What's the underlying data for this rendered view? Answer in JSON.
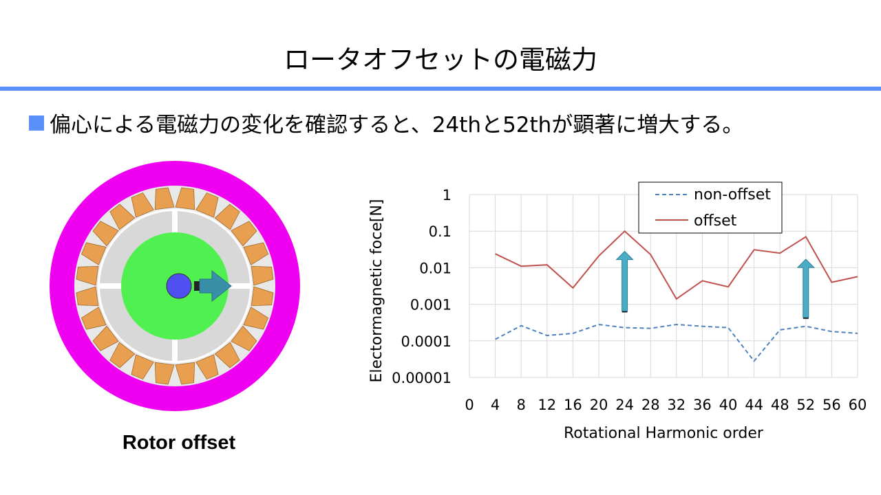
{
  "slide": {
    "title": "ロータオフセットの電磁力",
    "bullet": "偏心による電磁力の変化を確認すると、24thと52thが顕著に増大する。",
    "accent_color": "#5B8FF9"
  },
  "figure": {
    "caption": "Rotor offset",
    "colors": {
      "stator_outer": "#F000F0",
      "slot_gap": "#E8E8E8",
      "coil": "#E8A050",
      "rotor_core": "#D8D8D8",
      "magnet_region": "#50F050",
      "shaft": "#5050F0",
      "offset_arrow": "#3A8FA8"
    },
    "coil_count": 24,
    "offset_arrow_icon": "arrow-right-icon"
  },
  "chart_data": {
    "type": "line",
    "xlabel": "Rotational Harmonic order",
    "ylabel": "Electormagnetic foce[N]",
    "yscale": "log",
    "ylim": [
      1e-05,
      1
    ],
    "xlim": [
      0,
      60
    ],
    "x_ticks": [
      "0",
      "4",
      "8",
      "12",
      "16",
      "20",
      "24",
      "28",
      "32",
      "36",
      "40",
      "44",
      "48",
      "52",
      "56",
      "60"
    ],
    "y_ticks": [
      "0.00001",
      "0.0001",
      "0.001",
      "0.01",
      "0.1",
      "1"
    ],
    "grid": true,
    "legend_position": "top-center",
    "series": [
      {
        "name": "non-offset",
        "style": "dashed",
        "color": "#4F81BD",
        "x": [
          4,
          8,
          12,
          16,
          20,
          24,
          28,
          32,
          36,
          40,
          44,
          48,
          52,
          56,
          60
        ],
        "values": [
          0.00011,
          0.00026,
          0.00014,
          0.00016,
          0.00028,
          0.00023,
          0.00022,
          0.00028,
          0.00025,
          0.00023,
          2.8e-05,
          0.0002,
          0.00025,
          0.00018,
          0.00016
        ]
      },
      {
        "name": "offset",
        "style": "solid",
        "color": "#C0504D",
        "x": [
          4,
          8,
          12,
          16,
          20,
          24,
          28,
          32,
          36,
          40,
          44,
          48,
          52,
          56,
          60
        ],
        "values": [
          0.024,
          0.011,
          0.012,
          0.0028,
          0.021,
          0.1,
          0.023,
          0.0014,
          0.0044,
          0.003,
          0.031,
          0.025,
          0.07,
          0.004,
          0.0057
        ]
      }
    ],
    "annotations": [
      {
        "type": "up-arrow",
        "x": 24,
        "from": 0.0006,
        "to": 0.028
      },
      {
        "type": "up-arrow",
        "x": 52,
        "from": 0.0004,
        "to": 0.017
      }
    ]
  }
}
